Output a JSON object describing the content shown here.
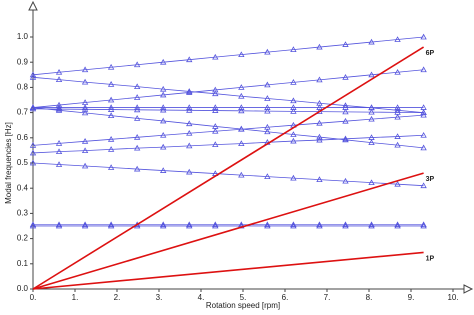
{
  "chart_data": {
    "type": "line",
    "x_label": "Rotation speed [rpm]",
    "y_label": "Modal frequencies [Hz]",
    "xlim": [
      0,
      10
    ],
    "ylim": [
      0,
      1
    ],
    "xticks": [
      {
        "value": 0,
        "label": "0."
      },
      {
        "value": 1,
        "label": "1."
      },
      {
        "value": 2,
        "label": "2."
      },
      {
        "value": 3,
        "label": "3."
      },
      {
        "value": 4,
        "label": "4."
      },
      {
        "value": 5,
        "label": "5."
      },
      {
        "value": 6,
        "label": "6."
      },
      {
        "value": 7,
        "label": "7."
      },
      {
        "value": 8,
        "label": "8."
      },
      {
        "value": 9,
        "label": "9."
      },
      {
        "value": 10,
        "label": "10."
      }
    ],
    "yticks": [
      {
        "value": 0,
        "label": "0.0"
      },
      0.1,
      0.2,
      0.3,
      0.4,
      0.5,
      0.6,
      0.7,
      0.8,
      0.9,
      {
        "value": 1,
        "label": "1.0"
      }
    ],
    "x": [
      0,
      0.62,
      1.24,
      1.86,
      2.48,
      3.1,
      3.72,
      4.34,
      4.96,
      5.58,
      6.2,
      6.82,
      7.44,
      8.06,
      8.68,
      9.3
    ],
    "series": [
      {
        "color": "#5555dd",
        "marker": "triangle",
        "values": [
          0.85,
          0.86,
          0.87,
          0.88,
          0.89,
          0.9,
          0.91,
          0.92,
          0.93,
          0.94,
          0.95,
          0.96,
          0.97,
          0.98,
          0.99,
          1.0
        ]
      },
      {
        "color": "#5555dd",
        "marker": "triangle",
        "values": [
          0.84,
          0.831,
          0.821,
          0.812,
          0.803,
          0.793,
          0.784,
          0.775,
          0.765,
          0.756,
          0.747,
          0.737,
          0.728,
          0.719,
          0.709,
          0.7
        ]
      },
      {
        "color": "#5555dd",
        "marker": "triangle",
        "values": [
          0.72,
          0.73,
          0.74,
          0.75,
          0.76,
          0.77,
          0.78,
          0.79,
          0.8,
          0.81,
          0.82,
          0.83,
          0.84,
          0.85,
          0.86,
          0.87
        ]
      },
      {
        "color": "#5555dd",
        "marker": "triangle",
        "values": [
          0.72,
          0.72,
          0.72,
          0.72,
          0.72,
          0.72,
          0.72,
          0.72,
          0.72,
          0.72,
          0.72,
          0.72,
          0.72,
          0.72,
          0.72,
          0.72
        ]
      },
      {
        "color": "#5555dd",
        "marker": "triangle",
        "values": [
          0.715,
          0.714,
          0.713,
          0.712,
          0.711,
          0.71,
          0.709,
          0.708,
          0.707,
          0.706,
          0.705,
          0.704,
          0.703,
          0.702,
          0.701,
          0.7
        ]
      },
      {
        "color": "#5555dd",
        "marker": "triangle",
        "values": [
          0.72,
          0.709,
          0.699,
          0.688,
          0.677,
          0.667,
          0.656,
          0.645,
          0.635,
          0.624,
          0.613,
          0.603,
          0.592,
          0.581,
          0.571,
          0.56
        ]
      },
      {
        "color": "#5555dd",
        "marker": "triangle",
        "values": [
          0.57,
          0.578,
          0.586,
          0.594,
          0.602,
          0.61,
          0.618,
          0.626,
          0.634,
          0.642,
          0.65,
          0.658,
          0.666,
          0.674,
          0.682,
          0.69
        ]
      },
      {
        "color": "#5555dd",
        "marker": "triangle",
        "values": [
          0.54,
          0.545,
          0.549,
          0.554,
          0.559,
          0.563,
          0.568,
          0.573,
          0.577,
          0.582,
          0.587,
          0.591,
          0.596,
          0.601,
          0.605,
          0.61
        ]
      },
      {
        "color": "#5555dd",
        "marker": "triangle",
        "values": [
          0.5,
          0.494,
          0.488,
          0.482,
          0.476,
          0.47,
          0.464,
          0.458,
          0.452,
          0.446,
          0.44,
          0.434,
          0.428,
          0.422,
          0.416,
          0.41
        ]
      },
      {
        "color": "#5555dd",
        "marker": "triangle",
        "values": [
          0.255,
          0.255,
          0.255,
          0.255,
          0.255,
          0.255,
          0.255,
          0.255,
          0.255,
          0.255,
          0.255,
          0.255,
          0.255,
          0.255,
          0.255,
          0.255
        ]
      },
      {
        "color": "#5555dd",
        "marker": "triangle",
        "values": [
          0.25,
          0.25,
          0.25,
          0.25,
          0.25,
          0.25,
          0.25,
          0.25,
          0.25,
          0.25,
          0.25,
          0.25,
          0.25,
          0.25,
          0.25,
          0.25
        ]
      },
      {
        "name": "6P",
        "color": "#dd1111",
        "x": [
          0,
          9.3
        ],
        "values": [
          0,
          0.96
        ]
      },
      {
        "name": "3P",
        "color": "#dd1111",
        "x": [
          0,
          9.3
        ],
        "values": [
          0,
          0.46
        ]
      },
      {
        "name": "1P",
        "color": "#dd1111",
        "x": [
          0,
          9.3
        ],
        "values": [
          0,
          0.145
        ]
      }
    ]
  }
}
